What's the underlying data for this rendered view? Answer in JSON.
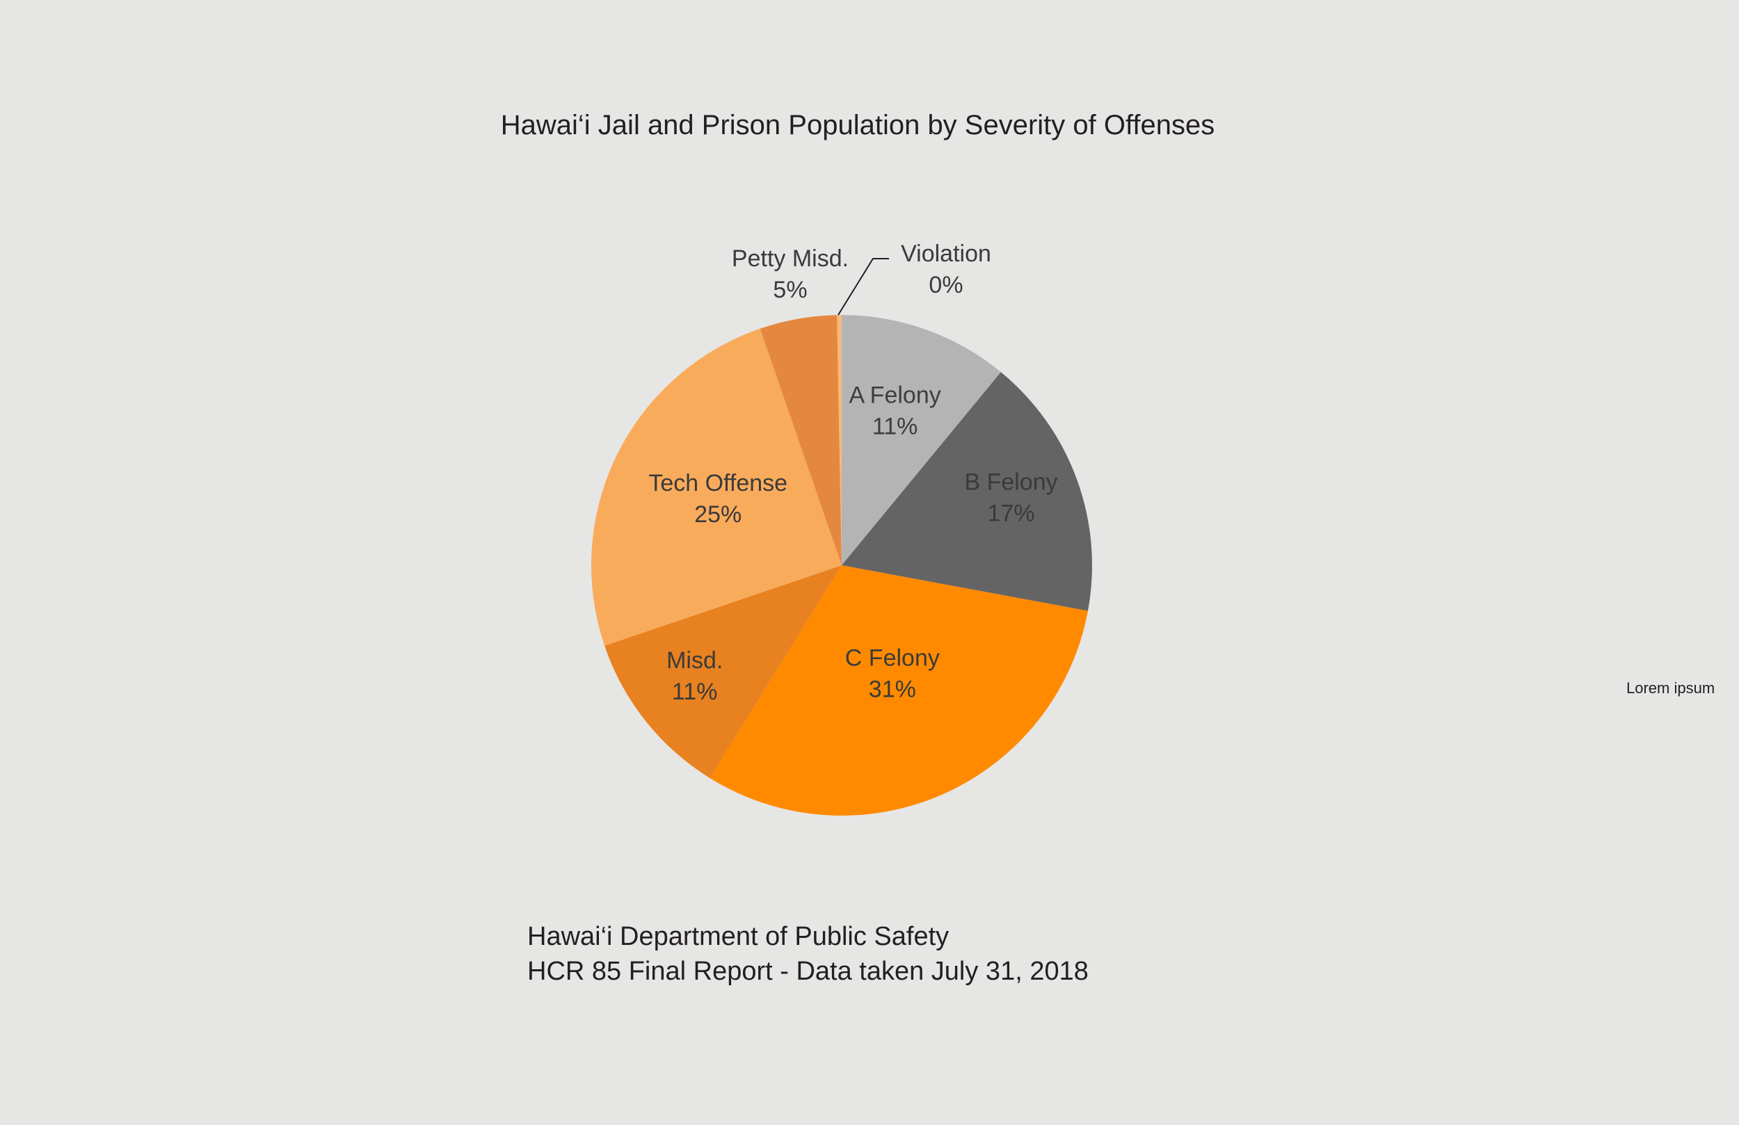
{
  "chart_data": {
    "type": "pie",
    "title": "Hawai‘i Jail and Prison Population by Severity of Offenses",
    "slices": [
      {
        "label": "A Felony",
        "value": 11,
        "value_label": "11%",
        "color": "#b4b4b4",
        "text_color": "#3d3d3d"
      },
      {
        "label": "B Felony",
        "value": 17,
        "value_label": "17%",
        "color": "#646464",
        "text_color": "#3a3a3a"
      },
      {
        "label": "C Felony",
        "value": 31,
        "value_label": "31%",
        "color": "#ff8a00",
        "text_color": "#3a3a3a"
      },
      {
        "label": "Misd.",
        "value": 11,
        "value_label": "11%",
        "color": "#e8811f",
        "text_color": "#3a3a3a"
      },
      {
        "label": "Tech Offense",
        "value": 25,
        "value_label": "25%",
        "color": "#f9ab5c",
        "text_color": "#3a3a3a"
      },
      {
        "label": "Petty Misd.",
        "value": 5,
        "value_label": "5%",
        "color": "#e5883f",
        "text_color": "#3a3a3a"
      },
      {
        "label": "Violation",
        "value": 0.3,
        "value_label": "0%",
        "color": "#f6b97a",
        "text_color": "#3a3a3a"
      }
    ],
    "start_angle_deg": 0,
    "direction": "clockwise"
  },
  "source": {
    "line1": "Hawai‘i Department of Public Safety",
    "line2": "HCR 85 Final Report - Data taken July 31, 2018"
  },
  "side_note": "Lorem ipsum"
}
